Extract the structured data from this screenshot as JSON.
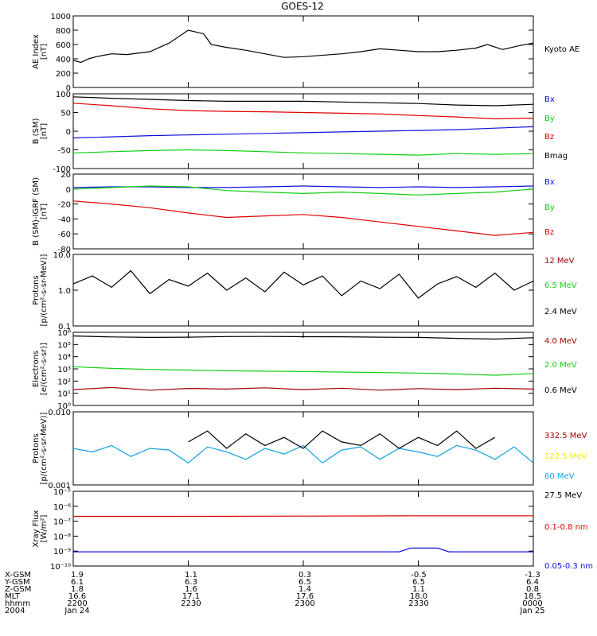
{
  "title": "GOES-12",
  "colors": {
    "black": "#000000",
    "red": "#e00000",
    "blue": "#1010e0",
    "green": "#10d010",
    "cyan": "#10a0e0",
    "yellow": "#f0f000",
    "dkred": "#a00000"
  },
  "time_ticks": [
    "2200",
    "2230",
    "2300",
    "2330",
    "0000"
  ],
  "chart_data": [
    {
      "type": "line",
      "ylabel": [
        "AE Index",
        "[nT]"
      ],
      "ylim": [
        0,
        1000
      ],
      "yscale": "linear",
      "yticks": [
        "0",
        "200",
        "400",
        "600",
        "800",
        "1000"
      ],
      "legend": [
        {
          "label": "Kyoto AE",
          "color": "black"
        }
      ],
      "series": [
        {
          "color": "black",
          "t": [
            0,
            2,
            4,
            6,
            10,
            14,
            20,
            25,
            30,
            34,
            36,
            40,
            45,
            50,
            55,
            60,
            70,
            75,
            80,
            85,
            90,
            95,
            100,
            105,
            108,
            112,
            116,
            120
          ],
          "v": [
            380,
            350,
            400,
            430,
            470,
            460,
            500,
            620,
            800,
            750,
            600,
            560,
            520,
            470,
            420,
            430,
            470,
            500,
            540,
            520,
            500,
            500,
            520,
            550,
            600,
            530,
            580,
            620
          ]
        }
      ]
    },
    {
      "type": "line",
      "ylabel": [
        "B (SM)",
        "[nT]"
      ],
      "ylim": [
        -100,
        100
      ],
      "yscale": "linear",
      "yticks": [
        "-100",
        "-50",
        "0",
        "50",
        "100"
      ],
      "legend": [
        {
          "label": "Bx",
          "color": "blue"
        },
        {
          "label": "By",
          "color": "green"
        },
        {
          "label": "Bz",
          "color": "red"
        },
        {
          "label": "Bmag",
          "color": "black"
        }
      ],
      "series": [
        {
          "color": "black",
          "t": [
            0,
            10,
            20,
            30,
            40,
            50,
            60,
            70,
            80,
            90,
            100,
            110,
            120
          ],
          "v": [
            92,
            88,
            85,
            82,
            80,
            80,
            80,
            78,
            76,
            74,
            70,
            68,
            72
          ]
        },
        {
          "color": "red",
          "t": [
            0,
            10,
            20,
            30,
            40,
            50,
            60,
            70,
            80,
            90,
            100,
            110,
            120
          ],
          "v": [
            75,
            68,
            60,
            55,
            53,
            52,
            50,
            48,
            46,
            42,
            38,
            33,
            35
          ]
        },
        {
          "color": "blue",
          "t": [
            0,
            10,
            20,
            30,
            40,
            50,
            60,
            70,
            80,
            90,
            100,
            110,
            120
          ],
          "v": [
            -18,
            -15,
            -12,
            -10,
            -8,
            -6,
            -4,
            -2,
            0,
            2,
            4,
            8,
            12
          ]
        },
        {
          "color": "green",
          "t": [
            0,
            10,
            20,
            30,
            40,
            50,
            60,
            70,
            80,
            90,
            100,
            110,
            120
          ],
          "v": [
            -58,
            -55,
            -52,
            -50,
            -52,
            -55,
            -58,
            -60,
            -62,
            -64,
            -60,
            -62,
            -60
          ]
        }
      ]
    },
    {
      "type": "line",
      "ylabel": [
        "B (SM)-IGRF (SM)",
        "[nT]"
      ],
      "ylim": [
        -80,
        20
      ],
      "yscale": "linear",
      "yticks": [
        "-80",
        "-60",
        "-40",
        "-20",
        "0",
        "20"
      ],
      "legend": [
        {
          "label": "Bx",
          "color": "blue"
        },
        {
          "label": "By",
          "color": "green"
        },
        {
          "label": "Bz",
          "color": "red"
        }
      ],
      "series": [
        {
          "color": "blue",
          "t": [
            0,
            10,
            20,
            30,
            40,
            50,
            60,
            70,
            80,
            90,
            100,
            110,
            120
          ],
          "v": [
            2,
            3,
            3,
            2,
            2,
            3,
            4,
            3,
            2,
            3,
            2,
            3,
            4
          ]
        },
        {
          "color": "green",
          "t": [
            0,
            10,
            20,
            30,
            40,
            50,
            60,
            70,
            80,
            90,
            100,
            110,
            120
          ],
          "v": [
            0,
            2,
            4,
            3,
            -2,
            -4,
            -6,
            -4,
            -6,
            -8,
            -6,
            -4,
            0
          ]
        },
        {
          "color": "red",
          "t": [
            0,
            10,
            20,
            30,
            40,
            50,
            60,
            70,
            80,
            90,
            100,
            110,
            120
          ],
          "v": [
            -16,
            -20,
            -25,
            -32,
            -38,
            -36,
            -34,
            -38,
            -44,
            -50,
            -56,
            -62,
            -58
          ]
        }
      ]
    },
    {
      "type": "line",
      "ylabel": [
        "Protons",
        "[p/(cm²-s-sr-MeV)]"
      ],
      "ylim": [
        0.1,
        10
      ],
      "yscale": "log",
      "yticks": [
        "0.1",
        "1.0",
        "10.0"
      ],
      "legend": [
        {
          "label": "12 MeV",
          "color": "dkred"
        },
        {
          "label": "6.5 MeV",
          "color": "green"
        },
        {
          "label": "2.4 MeV",
          "color": "black"
        }
      ],
      "series": [
        {
          "color": "black",
          "t": [
            0,
            5,
            10,
            15,
            20,
            25,
            30,
            35,
            40,
            45,
            50,
            55,
            60,
            65,
            70,
            75,
            80,
            85,
            90,
            95,
            100,
            105,
            110,
            115,
            120
          ],
          "v": [
            1.5,
            2.5,
            1.2,
            3.5,
            0.8,
            2.0,
            1.3,
            3.0,
            1.0,
            2.2,
            0.9,
            3.2,
            1.4,
            2.5,
            0.7,
            1.8,
            1.1,
            2.8,
            0.6,
            1.5,
            2.4,
            1.2,
            3.0,
            1.0,
            1.8
          ]
        }
      ]
    },
    {
      "type": "line",
      "ylabel": [
        "Electrons",
        "[e/(cm²-s-sr)]"
      ],
      "ylim": [
        1,
        1000000
      ],
      "yscale": "log",
      "yticks": [
        "10⁰",
        "10¹",
        "10²",
        "10³",
        "10⁴",
        "10⁵",
        "10⁶"
      ],
      "legend": [
        {
          "label": "4.0 MeV",
          "color": "dkred"
        },
        {
          "label": "2.0 MeV",
          "color": "green"
        },
        {
          "label": "0.6 MeV",
          "color": "black"
        }
      ],
      "series": [
        {
          "color": "black",
          "t": [
            0,
            10,
            20,
            30,
            40,
            50,
            60,
            70,
            80,
            90,
            100,
            110,
            120
          ],
          "v": [
            500000,
            420000,
            380000,
            400000,
            450000,
            460000,
            440000,
            430000,
            400000,
            380000,
            320000,
            280000,
            360000
          ]
        },
        {
          "color": "green",
          "t": [
            0,
            10,
            20,
            30,
            40,
            50,
            60,
            70,
            80,
            90,
            100,
            110,
            120
          ],
          "v": [
            1500,
            1100,
            900,
            800,
            700,
            650,
            600,
            550,
            500,
            450,
            380,
            300,
            420
          ]
        },
        {
          "color": "dkred",
          "t": [
            0,
            10,
            20,
            30,
            40,
            50,
            60,
            70,
            80,
            90,
            100,
            110,
            120
          ],
          "v": [
            20,
            30,
            18,
            25,
            22,
            28,
            20,
            26,
            18,
            24,
            20,
            26,
            22
          ]
        }
      ]
    },
    {
      "type": "line",
      "ylabel": [
        "Protons",
        "[p/(cm²-s-sr-MeV)]"
      ],
      "ylim": [
        0.001,
        0.1
      ],
      "yscale": "log",
      "yticks": [
        "0.001",
        "0.010"
      ],
      "legend": [
        {
          "label": "332.5 MeV",
          "color": "dkred"
        },
        {
          "label": "122.5 MeV",
          "color": "yellow"
        },
        {
          "label": "60 MeV",
          "color": "cyan"
        },
        {
          "label": "27.5 MeV",
          "color": "black"
        }
      ],
      "series": [
        {
          "color": "cyan",
          "t": [
            0,
            5,
            10,
            15,
            20,
            25,
            30,
            35,
            40,
            45,
            50,
            55,
            60,
            65,
            70,
            75,
            80,
            85,
            90,
            95,
            100,
            105,
            110,
            115,
            120
          ],
          "v": [
            0.01,
            0.008,
            0.012,
            0.006,
            0.01,
            0.009,
            0.004,
            0.011,
            0.008,
            0.005,
            0.01,
            0.007,
            0.012,
            0.004,
            0.009,
            0.011,
            0.005,
            0.01,
            0.008,
            0.006,
            0.012,
            0.009,
            0.005,
            0.011,
            0.004
          ]
        },
        {
          "color": "black",
          "t": [
            30,
            35,
            40,
            45,
            50,
            55,
            60,
            65,
            70,
            75,
            80,
            85,
            90,
            95,
            100,
            105,
            110
          ],
          "v": [
            0.015,
            0.03,
            0.01,
            0.025,
            0.012,
            0.02,
            0.01,
            0.03,
            0.015,
            0.012,
            0.025,
            0.01,
            0.02,
            0.012,
            0.03,
            0.01,
            0.02
          ]
        }
      ]
    },
    {
      "type": "line",
      "ylabel": [
        "Xray Flux",
        "[W/m²]"
      ],
      "ylim": [
        1e-10,
        1e-05
      ],
      "yscale": "log",
      "yticks": [
        "10⁻¹⁰",
        "10⁻⁹",
        "10⁻⁸",
        "10⁻⁷",
        "10⁻⁶",
        "10⁻⁵"
      ],
      "legend": [
        {
          "label": "0.1-0.8 nm",
          "color": "red"
        },
        {
          "label": "0.05-0.3 nm",
          "color": "blue"
        }
      ],
      "series": [
        {
          "color": "red",
          "t": [
            0,
            30,
            60,
            90,
            120
          ],
          "v": [
            2.1e-07,
            2.1e-07,
            2.2e-07,
            2.3e-07,
            2.3e-07
          ]
        },
        {
          "color": "blue",
          "t": [
            0,
            30,
            60,
            85,
            88,
            95,
            98,
            120
          ],
          "v": [
            9e-10,
            9e-10,
            9e-10,
            9e-10,
            1.6e-09,
            1.6e-09,
            9e-10,
            9e-10
          ]
        }
      ]
    }
  ],
  "footer": {
    "rows": [
      {
        "label": "X-GSM",
        "values": [
          "1.9",
          "1.1",
          "0.3",
          "-0.5",
          "-1.3"
        ]
      },
      {
        "label": "Y-GSM",
        "values": [
          "6.1",
          "6.3",
          "6.5",
          "6.5",
          "6.4"
        ]
      },
      {
        "label": "Z-GSM",
        "values": [
          "1.8",
          "1.6",
          "1.4",
          "1.1",
          "0.8"
        ]
      },
      {
        "label": "MLT",
        "values": [
          "16.6",
          "17.1",
          "17.6",
          "18.0",
          "18.5"
        ]
      },
      {
        "label": "hhmm",
        "values": [
          "2200",
          "2230",
          "2300",
          "2330",
          "0000"
        ]
      },
      {
        "label": "2004",
        "values": [
          "Jan 24",
          "",
          "",
          "",
          "Jan 25"
        ]
      }
    ]
  }
}
